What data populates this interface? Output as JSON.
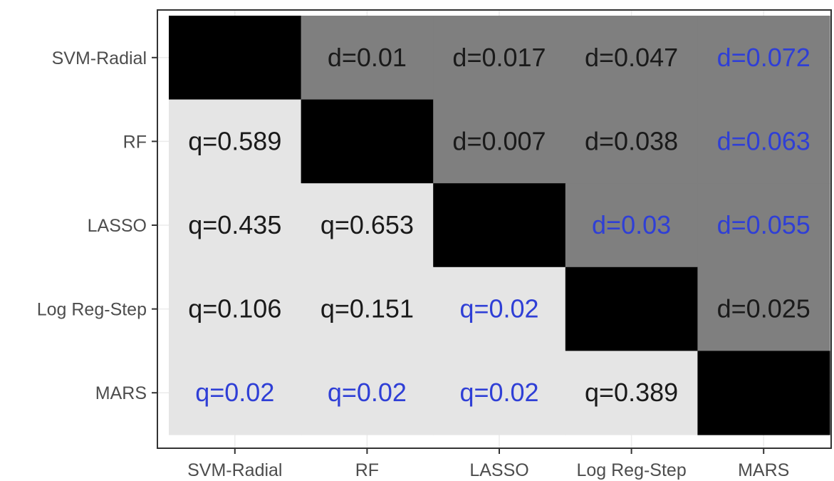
{
  "chart_data": {
    "type": "heatmap",
    "title": "",
    "xlabel": "",
    "ylabel": "",
    "categories": [
      "SVM-Radial",
      "RF",
      "LASSO",
      "Log Reg-Step",
      "MARS"
    ],
    "y_categories_top_to_bottom": [
      "SVM-Radial",
      "RF",
      "LASSO",
      "Log Reg-Step",
      "MARS"
    ],
    "legend": "none",
    "grid": true,
    "cells": [
      [
        "",
        "d=0.01",
        "d=0.017",
        "d=0.047",
        "d=0.072"
      ],
      [
        "q=0.589",
        "",
        "d=0.007",
        "d=0.038",
        "d=0.063"
      ],
      [
        "q=0.435",
        "q=0.653",
        "",
        "d=0.03",
        "d=0.055"
      ],
      [
        "q=0.106",
        "q=0.151",
        "q=0.02",
        "",
        "d=0.025"
      ],
      [
        "q=0.02",
        "q=0.02",
        "q=0.02",
        "q=0.389",
        ""
      ]
    ],
    "significant": [
      [
        false,
        false,
        false,
        false,
        true
      ],
      [
        false,
        false,
        false,
        false,
        true
      ],
      [
        false,
        false,
        false,
        true,
        true
      ],
      [
        false,
        false,
        true,
        false,
        false
      ],
      [
        true,
        true,
        true,
        false,
        false
      ]
    ],
    "colors": {
      "diagonal": "#000000",
      "upper": "#7f7f7f",
      "lower": "#e5e5e5",
      "text_default": "#1a1a1a",
      "text_significant": "#2f3fd6",
      "tick_label": "#4d4d4d",
      "axis": "#333333"
    }
  }
}
